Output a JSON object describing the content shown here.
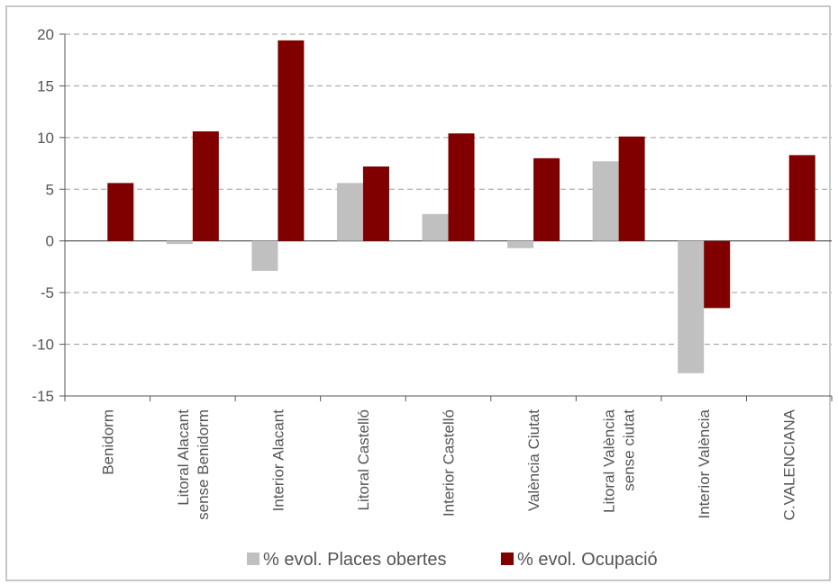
{
  "chart_data": {
    "type": "bar",
    "title": "",
    "xlabel": "",
    "ylabel": "",
    "ylim": [
      -15,
      20
    ],
    "yticks": [
      20,
      15,
      10,
      5,
      0,
      -5,
      -10,
      -15
    ],
    "grid": true,
    "legend_position": "bottom",
    "categories": [
      [
        "Benidorm"
      ],
      [
        "Litoral Alacant",
        "sense Benidorm"
      ],
      [
        "Interior Alacant"
      ],
      [
        "Litoral Castelló"
      ],
      [
        "Interior Castelló"
      ],
      [
        "València Ciutat"
      ],
      [
        "Litoral València",
        "sense ciutat"
      ],
      [
        "Interior València"
      ],
      [
        "C.VALENCIANA"
      ]
    ],
    "series": [
      {
        "name": "% evol. Places obertes",
        "color": "#c0c0c0",
        "values": [
          0,
          -0.3,
          -2.9,
          5.6,
          2.6,
          -0.7,
          7.7,
          -12.8,
          0
        ]
      },
      {
        "name": "% evol. Ocupació",
        "color": "#800000",
        "values": [
          5.6,
          10.6,
          19.4,
          7.2,
          10.4,
          8.0,
          10.1,
          -6.5,
          8.3
        ]
      }
    ]
  }
}
